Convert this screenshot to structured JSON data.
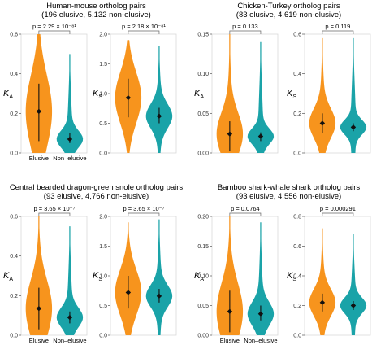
{
  "colors": {
    "elusive": "#F7941D",
    "non_elusive": "#1AA3A8",
    "point": "#111111"
  },
  "groups": [
    {
      "title_line1": "Human-mouse ortholog pairs",
      "title_line2": "(196 elusive, 5,132 non-elusive)"
    },
    {
      "title_line1": "Chicken-Turkey ortholog pairs",
      "title_line2": "(83 elusive, 4,619 non-elusive)"
    },
    {
      "title_line1": "Central bearded dragon-green snole ortholog pairs",
      "title_line2": "(93 elusive, 4,766 non-elusive)"
    },
    {
      "title_line1": "Bamboo shark-whale shark ortholog pairs",
      "title_line2": "(93 elusive, 4,556 non-elusive)"
    }
  ],
  "chart_data": [
    {
      "type": "violin",
      "group": 0,
      "ylabel": "K",
      "ylabel_sub": "A",
      "pvalue": "p = 2.29 × 10⁻⁸¹",
      "ylim": [
        0,
        0.6
      ],
      "yticks": [
        "0.0",
        "0.2",
        "0.4",
        "0.6"
      ],
      "categories": [
        "Elusive",
        "Non–elusive"
      ],
      "series": [
        {
          "mean": 0.21,
          "ci": [
            0.06,
            0.35
          ],
          "max": 0.6
        },
        {
          "mean": 0.07,
          "ci": [
            0.05,
            0.1
          ],
          "max": 0.5
        }
      ]
    },
    {
      "type": "violin",
      "group": 0,
      "ylabel": "K",
      "ylabel_sub": "S",
      "pvalue": "p = 2.18 × 10⁻⁸¹",
      "ylim": [
        0,
        2.0
      ],
      "yticks": [
        "0.0",
        "0.5",
        "1.0",
        "1.5",
        "2.0"
      ],
      "categories": [],
      "series": [
        {
          "mean": 0.93,
          "ci": [
            0.6,
            1.25
          ],
          "max": 1.9
        },
        {
          "mean": 0.62,
          "ci": [
            0.5,
            0.76
          ],
          "max": 1.8
        }
      ]
    },
    {
      "type": "violin",
      "group": 1,
      "ylabel": "K",
      "ylabel_sub": "A",
      "pvalue": "p = 0.133",
      "ylim": [
        0,
        0.15
      ],
      "yticks": [
        "0.00",
        "0.05",
        "0.10",
        "0.15"
      ],
      "categories": [],
      "series": [
        {
          "mean": 0.024,
          "ci": [
            0.002,
            0.04
          ],
          "max": 0.15
        },
        {
          "mean": 0.021,
          "ci": [
            0.015,
            0.026
          ],
          "max": 0.14
        }
      ]
    },
    {
      "type": "violin",
      "group": 1,
      "ylabel": "K",
      "ylabel_sub": "S",
      "pvalue": "p = 0.119",
      "ylim": [
        0,
        0.6
      ],
      "yticks": [
        "0.0",
        "0.2",
        "0.4",
        "0.6"
      ],
      "categories": [],
      "series": [
        {
          "mean": 0.15,
          "ci": [
            0.1,
            0.2
          ],
          "max": 0.58
        },
        {
          "mean": 0.13,
          "ci": [
            0.11,
            0.15
          ],
          "max": 0.58
        }
      ]
    },
    {
      "type": "violin",
      "group": 2,
      "ylabel": "K",
      "ylabel_sub": "A",
      "pvalue": "p = 3.65 × 10⁻⁷",
      "ylim": [
        0,
        0.6
      ],
      "yticks": [
        "0.0",
        "0.2",
        "0.4",
        "0.6"
      ],
      "categories": [
        "Elusive",
        "Non–elusive"
      ],
      "series": [
        {
          "mean": 0.135,
          "ci": [
            0.03,
            0.24
          ],
          "max": 0.6
        },
        {
          "mean": 0.09,
          "ci": [
            0.06,
            0.12
          ],
          "max": 0.55
        }
      ]
    },
    {
      "type": "violin",
      "group": 2,
      "ylabel": "K",
      "ylabel_sub": "S",
      "pvalue": "p = 3.65 × 10⁻⁷",
      "ylim": [
        0,
        2.0
      ],
      "yticks": [
        "0.0",
        "0.5",
        "1.0",
        "1.5",
        "2.0"
      ],
      "categories": [],
      "series": [
        {
          "mean": 0.72,
          "ci": [
            0.45,
            1.0
          ],
          "max": 1.9
        },
        {
          "mean": 0.66,
          "ci": [
            0.55,
            0.78
          ],
          "max": 1.95
        }
      ]
    },
    {
      "type": "violin",
      "group": 3,
      "ylabel": "K",
      "ylabel_sub": "A",
      "pvalue": "p = 0.0764",
      "ylim": [
        0,
        0.2
      ],
      "yticks": [
        "0.00",
        "0.05",
        "0.10",
        "0.15",
        "0.20"
      ],
      "categories": [
        "Elusive",
        "Non–elusive"
      ],
      "series": [
        {
          "mean": 0.04,
          "ci": [
            0.005,
            0.075
          ],
          "max": 0.2
        },
        {
          "mean": 0.036,
          "ci": [
            0.025,
            0.05
          ],
          "max": 0.19
        }
      ]
    },
    {
      "type": "violin",
      "group": 3,
      "ylabel": "K",
      "ylabel_sub": "S",
      "pvalue": "p = 0.000291",
      "ylim": [
        0,
        0.8
      ],
      "yticks": [
        "0.0",
        "0.2",
        "0.4",
        "0.6",
        "0.8"
      ],
      "categories": [],
      "series": [
        {
          "mean": 0.22,
          "ci": [
            0.16,
            0.28
          ],
          "max": 0.72
        },
        {
          "mean": 0.2,
          "ci": [
            0.17,
            0.23
          ],
          "max": 0.68
        }
      ]
    }
  ]
}
